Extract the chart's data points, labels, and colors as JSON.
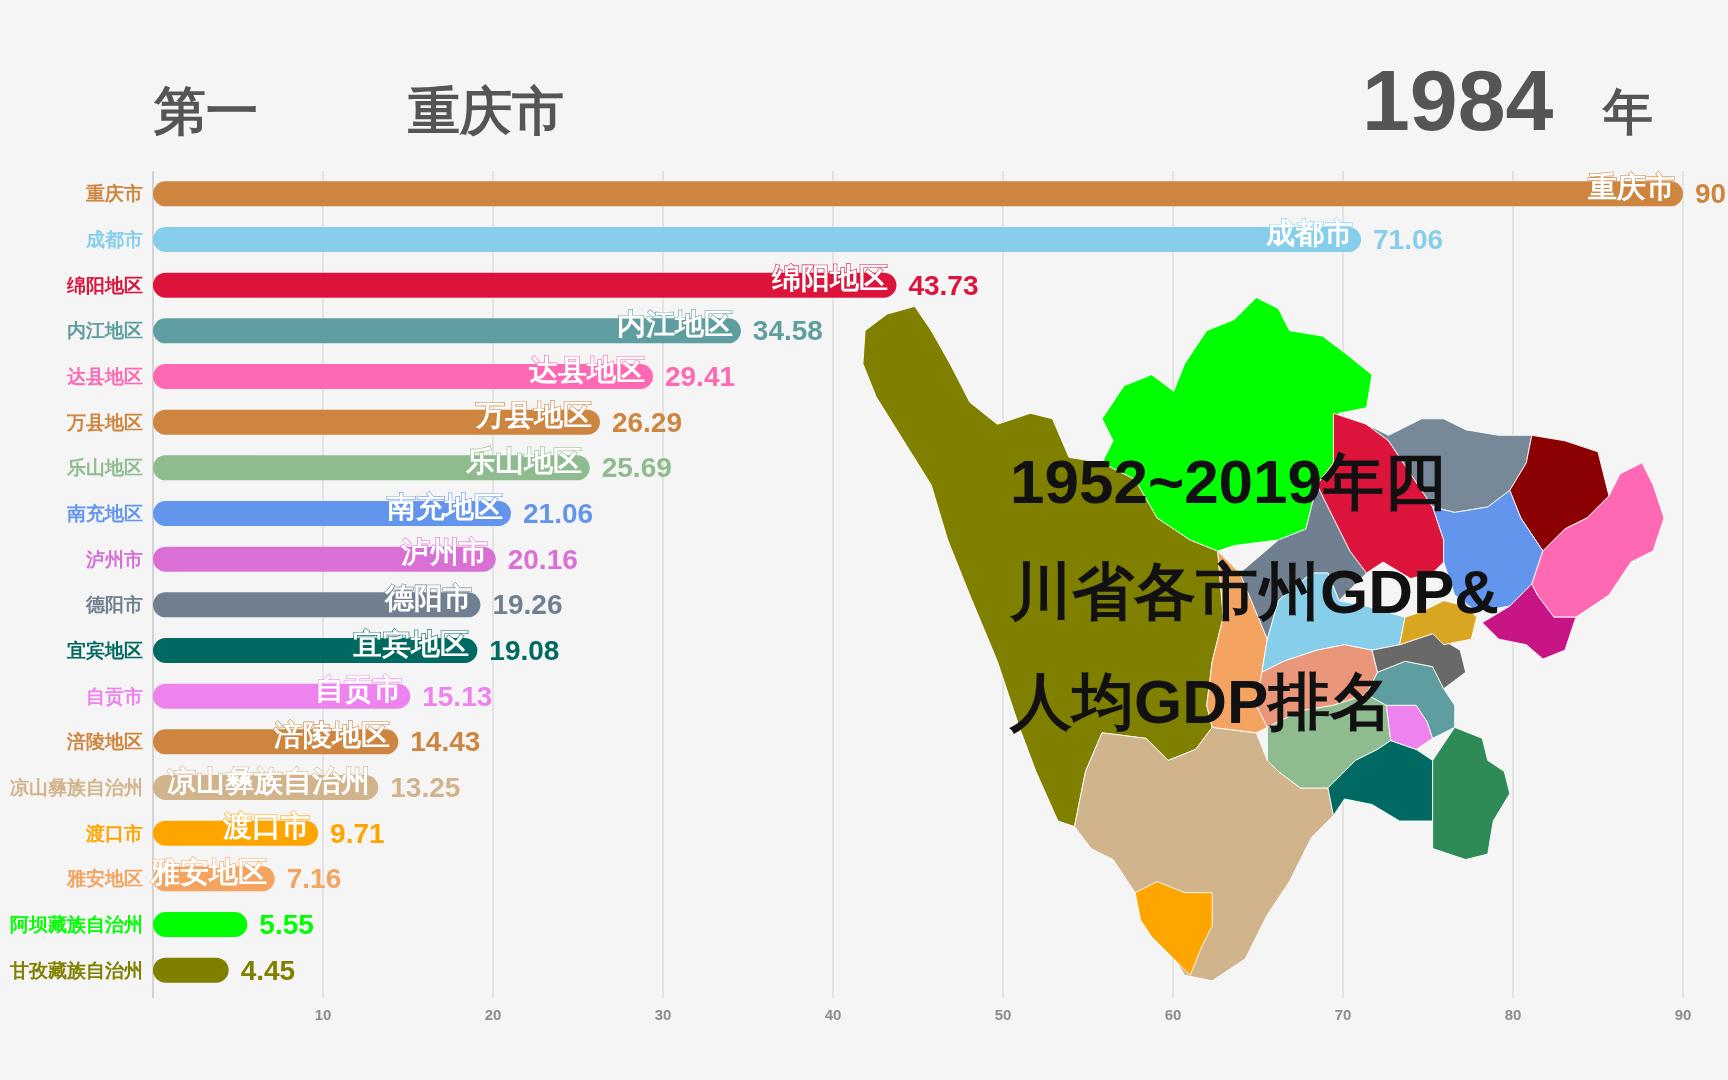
{
  "chart_data": {
    "type": "bar",
    "orientation": "horizontal",
    "title": "1952~2019年四川省各市州GDP&人均GDP排名",
    "annotations": [
      "第一",
      "重庆市",
      "1984",
      "年"
    ],
    "categories": [
      "重庆市",
      "成都市",
      "绵阳地区",
      "内江地区",
      "达县地区",
      "万县地区",
      "乐山地区",
      "南充地区",
      "泸州市",
      "德阳市",
      "宜宾地区",
      "自贡市",
      "涪陵地区",
      "凉山彝族自治州",
      "渡口市",
      "雅安地区",
      "阿坝藏族自治州",
      "甘孜藏族自治州"
    ],
    "values": [
      90,
      71.06,
      43.73,
      34.58,
      29.41,
      26.29,
      25.69,
      21.06,
      20.16,
      19.26,
      19.08,
      15.13,
      14.43,
      13.25,
      9.71,
      7.16,
      5.55,
      4.45
    ],
    "colors": [
      "#cd853f",
      "#87ceeb",
      "#dc143c",
      "#5f9ea0",
      "#ff69b4",
      "#cd853f",
      "#8fbc8f",
      "#6495ed",
      "#da70d6",
      "#708090",
      "#006a62",
      "#ee82ee",
      "#cd853f",
      "#d2b48c",
      "#ffa500",
      "#f4a460",
      "#00ff00",
      "#808000"
    ],
    "xlim": [
      0,
      90
    ],
    "xticks": [
      10,
      20,
      30,
      40,
      50,
      60,
      70,
      80,
      90
    ],
    "grid": "x",
    "data_labels": true
  }
}
